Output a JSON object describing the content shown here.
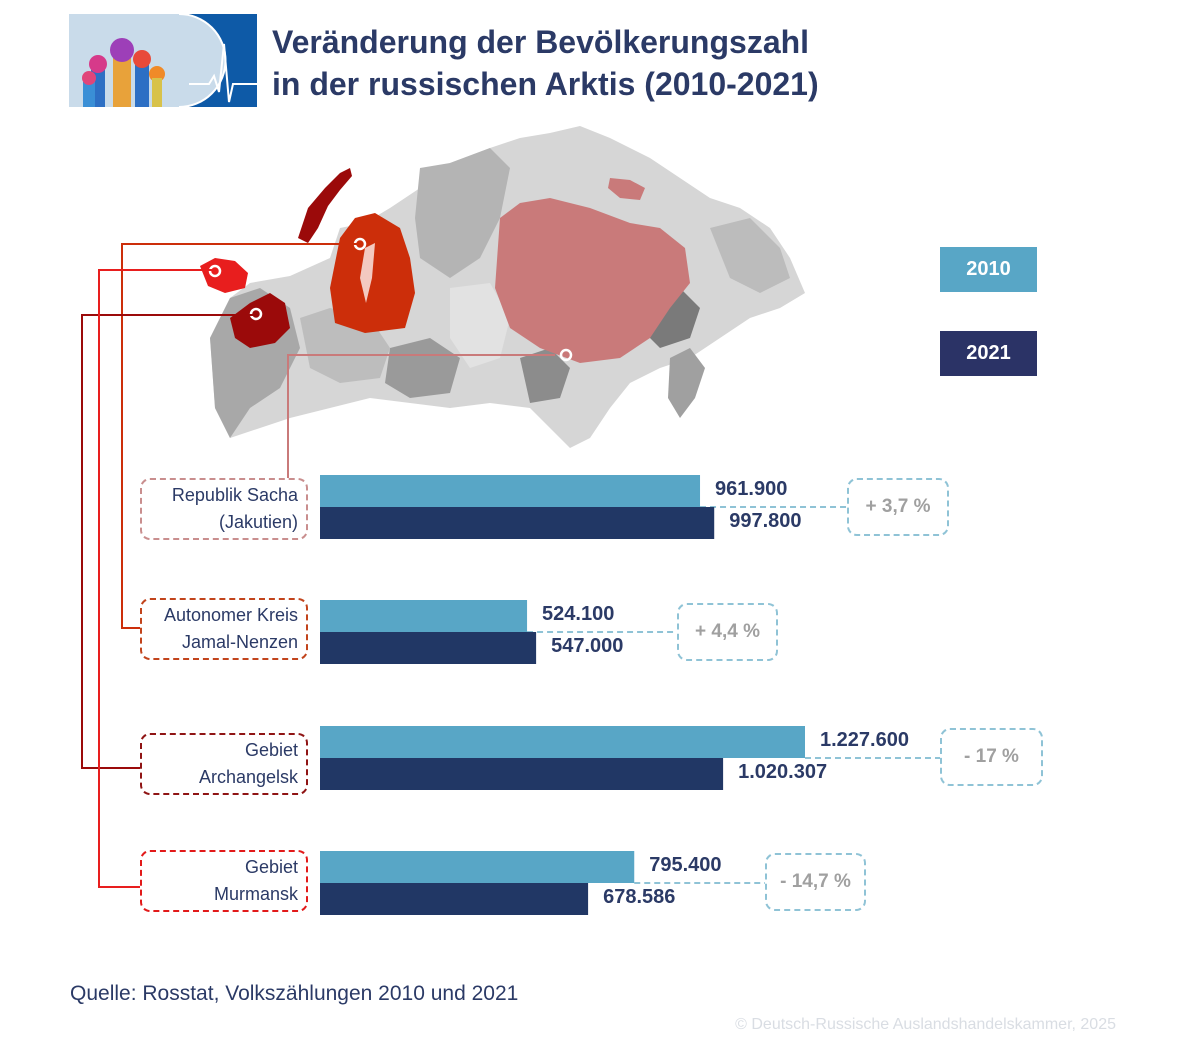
{
  "header": {
    "title_line1": "Veränderung der Bevölkerungszahl",
    "title_line2": "in der russischen Arktis (2010-2021)"
  },
  "legend": {
    "label_2010": "2010",
    "label_2021": "2021"
  },
  "colors": {
    "bar_2010": "#58a6c6",
    "bar_2021": "#213765",
    "title": "#2b3a66",
    "sacha": "#c97a7a",
    "jamal": "#cc2e0a",
    "archangelsk": "#9b0a0a",
    "murmansk": "#e81e1e"
  },
  "chart_data": {
    "type": "bar",
    "orientation": "horizontal",
    "categories": [
      "Republik Sacha (Jakutien)",
      "Autonomer Kreis Jamal-Nenzen",
      "Gebiet Archangelsk",
      "Gebiet Murmansk"
    ],
    "category_lines": [
      [
        "Republik Sacha",
        "(Jakutien)"
      ],
      [
        "Autonomer Kreis",
        "Jamal-Nenzen"
      ],
      [
        "Gebiet",
        "Archangelsk"
      ],
      [
        "Gebiet",
        "Murmansk"
      ]
    ],
    "series": [
      {
        "name": "2010",
        "values": [
          961900,
          524100,
          1227600,
          795400
        ],
        "labels": [
          "961.900",
          "524.100",
          "1.227.600",
          "795.400"
        ]
      },
      {
        "name": "2021",
        "values": [
          997800,
          547000,
          1020307,
          678586
        ],
        "labels": [
          "997.800",
          "547.000",
          "1.020.307",
          "678.586"
        ]
      }
    ],
    "changes": [
      "+ 3,7 %",
      "+ 4,4 %",
      "- 17 %",
      "- 14,7 %"
    ],
    "grid": false
  },
  "footer": {
    "source": "Quelle: Rosstat, Volkszählungen 2010 und 2021",
    "copyright": "© Deutsch-Russische Auslandshandelskammer, 2025"
  }
}
